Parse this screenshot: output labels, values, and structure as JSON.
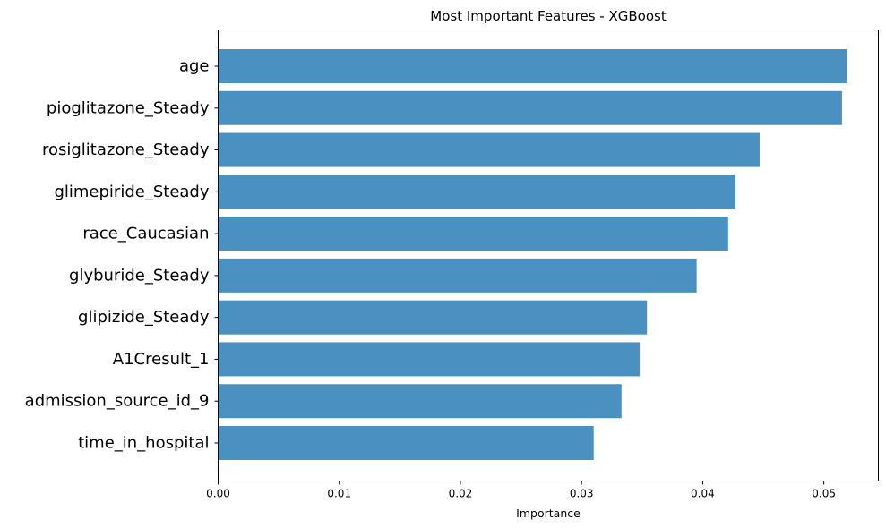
{
  "chart_data": {
    "type": "bar",
    "orientation": "horizontal",
    "title": "Most Important Features - XGBoost",
    "xlabel": "Importance",
    "ylabel": "",
    "xlim": [
      0,
      0.0545
    ],
    "xticks": [
      "0.00",
      "0.01",
      "0.02",
      "0.03",
      "0.04",
      "0.05"
    ],
    "grid": false,
    "legend": "none",
    "bar_color": "#4a91c2",
    "categories": [
      "age",
      "pioglitazone_Steady",
      "rosiglitazone_Steady",
      "glimepiride_Steady",
      "race_Caucasian",
      "glyburide_Steady",
      "glipizide_Steady",
      "A1Cresult_1",
      "admission_source_id_9",
      "time_in_hospital"
    ],
    "values": [
      0.0519,
      0.0515,
      0.0447,
      0.0427,
      0.0421,
      0.0395,
      0.0354,
      0.0348,
      0.0333,
      0.031
    ]
  }
}
